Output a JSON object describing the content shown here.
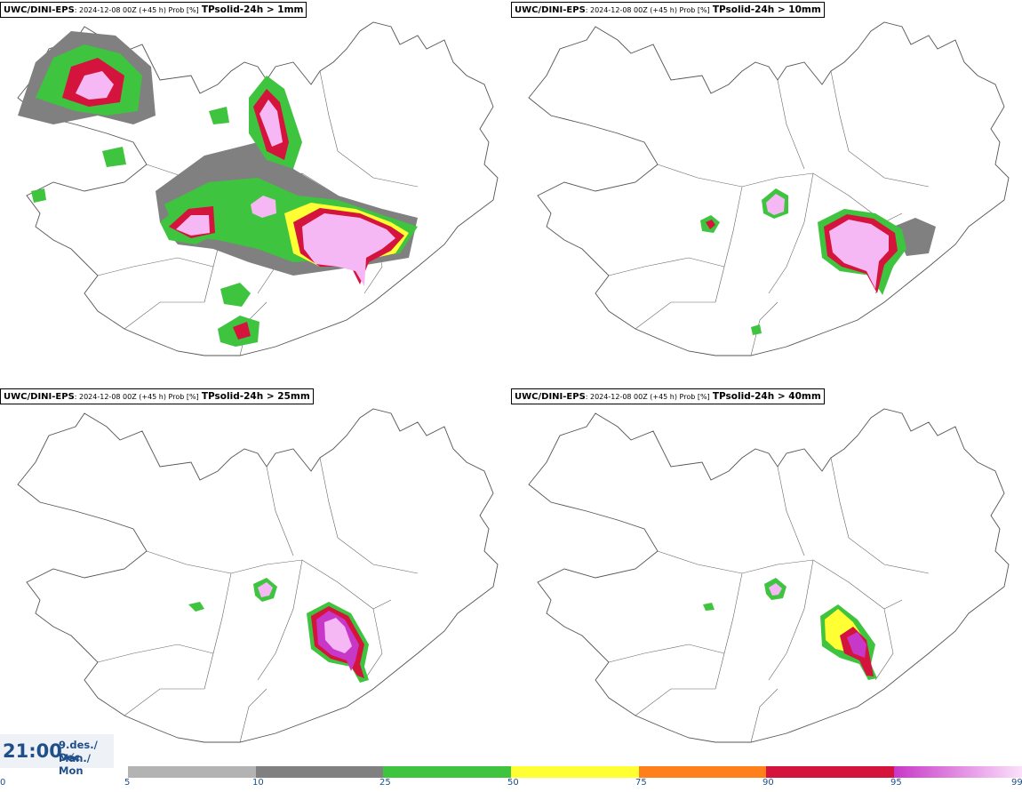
{
  "panels": [
    {
      "model": "UWC/DINI-EPS",
      "meta": ": 2024-12-08 00Z (+45 h) Prob [%]",
      "param": "TPsolid-24h > 1mm"
    },
    {
      "model": "UWC/DINI-EPS",
      "meta": ": 2024-12-08 00Z (+45 h) Prob [%]",
      "param": "TPsolid-24h > 10mm"
    },
    {
      "model": "UWC/DINI-EPS",
      "meta": ": 2024-12-08 00Z (+45 h) Prob [%]",
      "param": "TPsolid-24h > 25mm"
    },
    {
      "model": "UWC/DINI-EPS",
      "meta": ": 2024-12-08 00Z (+45 h) Prob [%]",
      "param": "TPsolid-24h > 40mm"
    }
  ],
  "valid": {
    "time": "21:00",
    "date_line1": "9.des./ Dec",
    "date_line2": "Mán./ Mon"
  },
  "legend": {
    "ticks": [
      "0",
      "5",
      "10",
      "25",
      "50",
      "75",
      "90",
      "95",
      "99"
    ],
    "colors": [
      "#b3b3b3",
      "#808080",
      "#3ec43e",
      "#ffff33",
      "#ff7f1a",
      "#d4143c",
      "#c838c8",
      "#f5b8f5"
    ]
  }
}
